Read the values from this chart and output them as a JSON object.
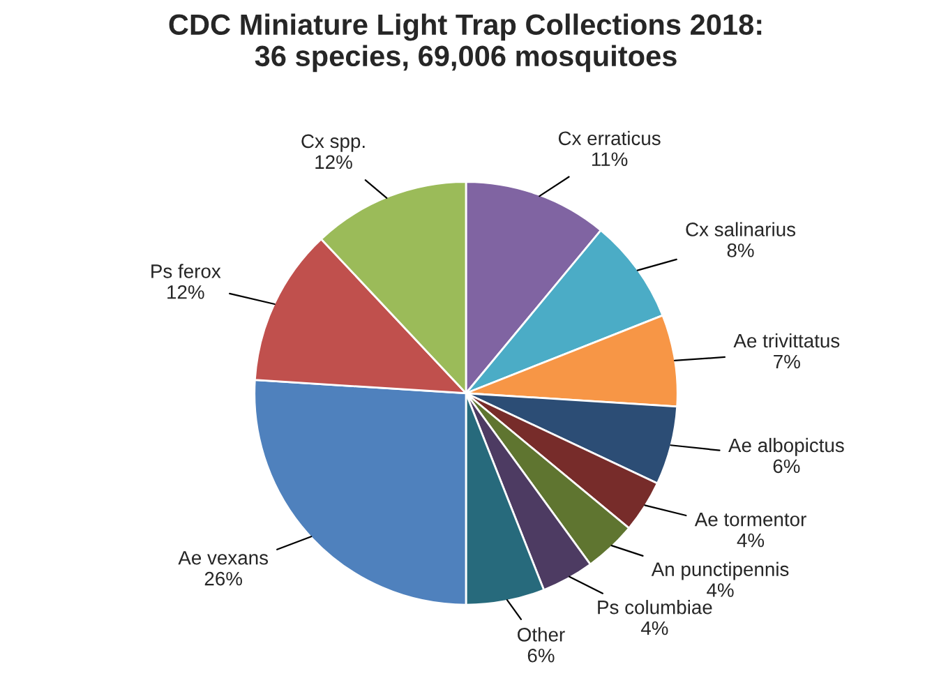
{
  "chart_data": {
    "type": "pie",
    "title": "CDC Miniature Light Trap Collections 2018:\n36 species, 69,006 mosquitoes",
    "categories": [
      "Cx erraticus",
      "Cx salinarius",
      "Ae trivittatus",
      "Ae albopictus",
      "Ae tormentor",
      "An punctipennis",
      "Ps columbiae",
      "Other",
      "Ae vexans",
      "Ps ferox",
      "Cx spp."
    ],
    "values": [
      11,
      8,
      7,
      6,
      4,
      4,
      4,
      6,
      26,
      12,
      12
    ],
    "value_labels": [
      "11%",
      "8%",
      "7%",
      "6%",
      "4%",
      "4%",
      "4%",
      "6%",
      "26%",
      "12%",
      "12%"
    ],
    "colors": [
      "#8064a2",
      "#4bacc6",
      "#f79646",
      "#2c4d75",
      "#772c2a",
      "#5f7530",
      "#4d3b62",
      "#276a7c",
      "#4f81bd",
      "#c0504d",
      "#9bbb59"
    ],
    "legend": false
  }
}
